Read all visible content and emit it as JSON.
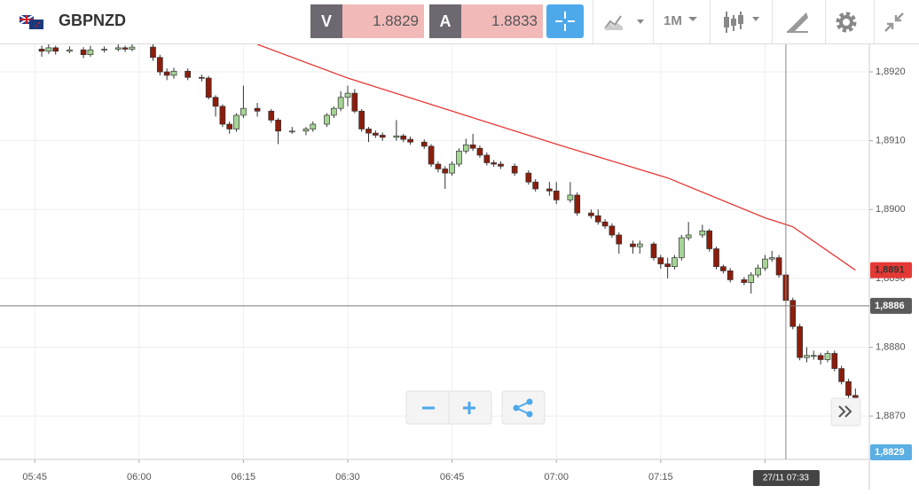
{
  "toolbar": {
    "symbol": "GBPNZD",
    "bid": {
      "label": "V",
      "price": "1.8829"
    },
    "ask": {
      "label": "A",
      "price": "1.8833"
    },
    "timeframe": "1M"
  },
  "chart_data": {
    "type": "candlestick",
    "x": [
      "05:46",
      "05:47",
      "05:48",
      "05:50",
      "05:52",
      "05:53",
      "05:55",
      "05:57",
      "05:58",
      "05:59",
      "06:02",
      "06:03",
      "06:04",
      "06:05",
      "06:07",
      "06:09",
      "06:10",
      "06:11",
      "06:12",
      "06:13",
      "06:14",
      "06:15",
      "06:17",
      "06:19",
      "06:20",
      "06:22",
      "06:24",
      "06:25",
      "06:27",
      "06:28",
      "06:29",
      "06:30",
      "06:31",
      "06:32",
      "06:33",
      "06:34",
      "06:35",
      "06:37",
      "06:38",
      "06:39",
      "06:41",
      "06:42",
      "06:43",
      "06:44",
      "06:45",
      "06:46",
      "06:47",
      "06:48",
      "06:49",
      "06:50",
      "06:51",
      "06:52",
      "06:54",
      "06:56",
      "06:57",
      "06:59",
      "07:00",
      "07:02",
      "07:03",
      "07:05",
      "07:06",
      "07:07",
      "07:08",
      "07:09",
      "07:11",
      "07:12",
      "07:14",
      "07:15",
      "07:16",
      "07:17",
      "07:18",
      "07:19",
      "07:21",
      "07:22",
      "07:23",
      "07:24",
      "07:25",
      "07:27",
      "07:28",
      "07:29",
      "07:30",
      "07:31",
      "07:32",
      "07:33",
      "07:34",
      "07:35",
      "07:36",
      "07:37",
      "07:38",
      "07:39",
      "07:40",
      "07:41",
      "07:42",
      "07:43"
    ],
    "open": [
      1.89233,
      1.8923,
      1.89235,
      1.8923,
      1.89232,
      1.89225,
      1.89232,
      1.89233,
      1.89235,
      1.89233,
      1.89236,
      1.89221,
      1.892,
      1.89195,
      1.89201,
      1.89192,
      1.89191,
      1.89163,
      1.8915,
      1.89124,
      1.89117,
      1.89137,
      1.89147,
      1.89143,
      1.8913,
      1.89114,
      1.89114,
      1.89117,
      1.89124,
      1.89137,
      1.89147,
      1.89163,
      1.89169,
      1.89143,
      1.89117,
      1.89111,
      1.89108,
      1.89105,
      1.89107,
      1.89102,
      1.89098,
      1.89092,
      1.89066,
      1.89059,
      1.89053,
      1.89066,
      1.89085,
      1.89094,
      1.89089,
      1.89079,
      1.89068,
      1.89066,
      1.89063,
      1.89053,
      1.8904,
      1.8903,
      1.89027,
      1.89014,
      1.89021,
      1.88995,
      1.88991,
      1.88982,
      1.88976,
      1.88963,
      1.8895,
      1.88946,
      1.8895,
      1.8893,
      1.88921,
      1.88917,
      1.8893,
      1.88959,
      1.88963,
      1.88969,
      1.88943,
      1.88917,
      1.88911,
      1.88898,
      1.88894,
      1.88905,
      1.88915,
      1.88928,
      1.8893,
      1.88905,
      1.88868,
      1.8883,
      1.88785,
      1.88788,
      1.88788,
      1.88782,
      1.88791,
      1.88769,
      1.8875,
      1.8873
    ],
    "high": [
      1.89238,
      1.8924,
      1.89238,
      1.89237,
      1.89236,
      1.89238,
      1.89237,
      1.8924,
      1.89238,
      1.8924,
      1.8924,
      1.89225,
      1.89205,
      1.89206,
      1.89205,
      1.89196,
      1.89194,
      1.89166,
      1.89153,
      1.89128,
      1.8914,
      1.8918,
      1.89155,
      1.89146,
      1.89133,
      1.8912,
      1.8912,
      1.89128,
      1.8914,
      1.8915,
      1.89172,
      1.8918,
      1.89175,
      1.89146,
      1.8912,
      1.89115,
      1.89112,
      1.8913,
      1.8911,
      1.89106,
      1.89102,
      1.89095,
      1.8907,
      1.89063,
      1.8907,
      1.89089,
      1.89103,
      1.8911,
      1.89093,
      1.89083,
      1.89072,
      1.8907,
      1.89067,
      1.89057,
      1.89044,
      1.8904,
      1.8904,
      1.8904,
      1.89025,
      1.89,
      1.89,
      1.88986,
      1.8898,
      1.88967,
      1.88955,
      1.88955,
      1.88953,
      1.88934,
      1.8893,
      1.88934,
      1.88963,
      1.88982,
      1.88978,
      1.88972,
      1.88946,
      1.8892,
      1.88915,
      1.88902,
      1.88909,
      1.8892,
      1.88934,
      1.8894,
      1.88934,
      1.88909,
      1.88872,
      1.88834,
      1.888,
      1.88795,
      1.88792,
      1.88795,
      1.88795,
      1.88773,
      1.88754,
      1.8874
    ],
    "low": [
      1.89222,
      1.89226,
      1.89225,
      1.89227,
      1.8922,
      1.89222,
      1.89228,
      1.8923,
      1.89229,
      1.8923,
      1.89216,
      1.89195,
      1.89188,
      1.8919,
      1.89188,
      1.89186,
      1.8916,
      1.89135,
      1.8912,
      1.8911,
      1.89113,
      1.89133,
      1.89135,
      1.89126,
      1.89095,
      1.8911,
      1.89108,
      1.89113,
      1.8912,
      1.89133,
      1.89143,
      1.8915,
      1.8914,
      1.89113,
      1.89098,
      1.89104,
      1.891,
      1.891,
      1.89098,
      1.89094,
      1.89088,
      1.89062,
      1.89054,
      1.8903,
      1.89049,
      1.89062,
      1.89081,
      1.89085,
      1.89075,
      1.89064,
      1.89062,
      1.89059,
      1.89049,
      1.89036,
      1.89026,
      1.8902,
      1.89008,
      1.8901,
      1.88991,
      1.88987,
      1.88978,
      1.88972,
      1.88959,
      1.88936,
      1.88936,
      1.88936,
      1.88926,
      1.88914,
      1.889,
      1.88913,
      1.88926,
      1.88955,
      1.88959,
      1.88939,
      1.88913,
      1.88907,
      1.88894,
      1.8889,
      1.88878,
      1.88901,
      1.88911,
      1.88924,
      1.88901,
      1.88864,
      1.88826,
      1.88781,
      1.88778,
      1.88782,
      1.88775,
      1.88778,
      1.88765,
      1.88746,
      1.88726,
      1.88722
    ],
    "close": [
      1.8923,
      1.89235,
      1.8923,
      1.89232,
      1.89225,
      1.89232,
      1.89233,
      1.89235,
      1.89233,
      1.89236,
      1.89221,
      1.892,
      1.89195,
      1.89201,
      1.89192,
      1.89191,
      1.89163,
      1.8915,
      1.89124,
      1.89117,
      1.89137,
      1.89147,
      1.89143,
      1.8913,
      1.89114,
      1.89114,
      1.89117,
      1.89124,
      1.89137,
      1.89147,
      1.89163,
      1.89169,
      1.89143,
      1.89117,
      1.89111,
      1.89108,
      1.89105,
      1.89107,
      1.89102,
      1.89098,
      1.89092,
      1.89066,
      1.89059,
      1.89053,
      1.89066,
      1.89085,
      1.89094,
      1.89089,
      1.89079,
      1.89068,
      1.89066,
      1.89063,
      1.89053,
      1.8904,
      1.8903,
      1.89027,
      1.89014,
      1.89021,
      1.88995,
      1.88991,
      1.88982,
      1.88976,
      1.88963,
      1.8895,
      1.88946,
      1.8895,
      1.8893,
      1.88921,
      1.88917,
      1.8893,
      1.88959,
      1.88963,
      1.88969,
      1.88943,
      1.88917,
      1.88911,
      1.88898,
      1.88894,
      1.88905,
      1.88915,
      1.88928,
      1.8893,
      1.88905,
      1.88868,
      1.8883,
      1.88785,
      1.88788,
      1.88788,
      1.88782,
      1.88791,
      1.88769,
      1.8875,
      1.8873,
      1.88727
    ],
    "up_color": "#a5d495",
    "down_color": "#8c1d0c",
    "ma": {
      "x": [
        "06:17",
        "06:30",
        "06:45",
        "07:00",
        "07:16",
        "07:30",
        "07:34",
        "07:43"
      ],
      "values": [
        1.8924,
        1.89191,
        1.89143,
        1.89095,
        1.89046,
        1.88988,
        1.88975,
        1.88912
      ],
      "color": "#e53935",
      "last_label": {
        "value": 1.88912,
        "label": "1,8891"
      }
    },
    "crosshair": {
      "price": {
        "value": 1.8886,
        "label": "1,8886"
      },
      "time": "27/11 07:33"
    },
    "bid_marker": {
      "value": 1.8829,
      "label": "1,8829"
    },
    "xlim": [
      "05:40",
      "07:45"
    ],
    "xticks": [
      "05:45",
      "06:00",
      "06:15",
      "06:30",
      "06:45",
      "07:00",
      "07:15",
      "07:30"
    ],
    "ylim": [
      1.88637,
      1.8924
    ],
    "yticks": [
      {
        "value": 1.887,
        "label": "1,8870"
      },
      {
        "value": 1.888,
        "label": "1,8880"
      },
      {
        "value": 1.889,
        "label": "1,8890"
      },
      {
        "value": 1.89,
        "label": "1,8900"
      },
      {
        "value": 1.891,
        "label": "1,8910"
      },
      {
        "value": 1.892,
        "label": "1,8920"
      }
    ],
    "grid": true
  }
}
